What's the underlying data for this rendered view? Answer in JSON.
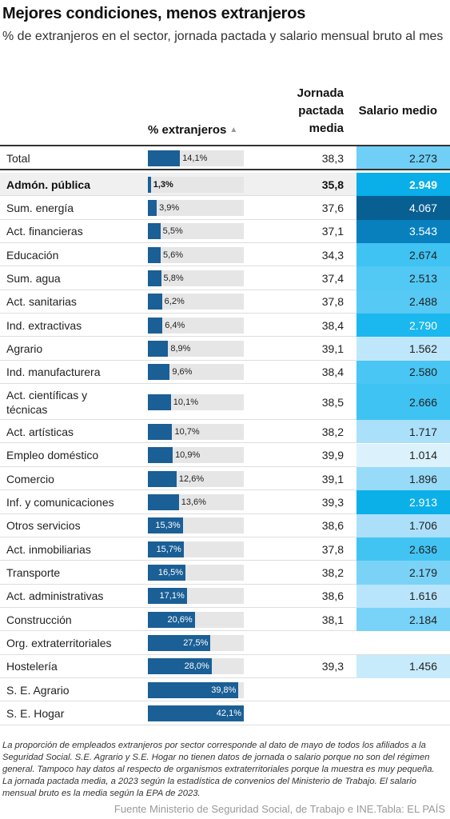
{
  "title": "Mejores condiciones, menos extranjeros",
  "subtitle": "% de extranjeros en el sector, jornada pactada y salario mensual bruto al mes",
  "headers": {
    "pct": "% extranjeros",
    "pct_sort_icon": "▲",
    "jornada": "Jornada pactada media",
    "salario": "Salario medio"
  },
  "chart_data": {
    "type": "table",
    "columns": [
      "",
      "% extranjeros",
      "Jornada pactada media",
      "Salario medio"
    ],
    "rows": [
      {
        "sector": "Total",
        "pct": 14.1,
        "pct_label": "14,1%",
        "jornada": "38,3",
        "salario": "2.273",
        "salario_value": 2273,
        "bg": "#6fcff6"
      },
      {
        "sector": "Admón. pública",
        "pct": 1.3,
        "pct_label": "1,3%",
        "jornada": "35,8",
        "salario": "2.949",
        "salario_value": 2949,
        "bg": "#0aaee8",
        "highlight": true
      },
      {
        "sector": "Sum. energía",
        "pct": 3.9,
        "pct_label": "3,9%",
        "jornada": "37,6",
        "salario": "4.067",
        "salario_value": 4067,
        "bg": "#085f92"
      },
      {
        "sector": "Act. financieras",
        "pct": 5.5,
        "pct_label": "5,5%",
        "jornada": "37,1",
        "salario": "3.543",
        "salario_value": 3543,
        "bg": "#0880be"
      },
      {
        "sector": "Educación",
        "pct": 5.6,
        "pct_label": "5,6%",
        "jornada": "34,3",
        "salario": "2.674",
        "salario_value": 2674,
        "bg": "#3ec3f3"
      },
      {
        "sector": "Sum. agua",
        "pct": 5.8,
        "pct_label": "5,8%",
        "jornada": "37,4",
        "salario": "2.513",
        "salario_value": 2513,
        "bg": "#52c8f5"
      },
      {
        "sector": "Act. sanitarias",
        "pct": 6.2,
        "pct_label": "6,2%",
        "jornada": "37,8",
        "salario": "2.488",
        "salario_value": 2488,
        "bg": "#56c9f5"
      },
      {
        "sector": "Ind. extractivas",
        "pct": 6.4,
        "pct_label": "6,4%",
        "jornada": "38,4",
        "salario": "2.790",
        "salario_value": 2790,
        "bg": "#1ab8ee"
      },
      {
        "sector": "Agrario",
        "pct": 8.9,
        "pct_label": "8,9%",
        "jornada": "39,1",
        "salario": "1.562",
        "salario_value": 1562,
        "bg": "#bfe7fb"
      },
      {
        "sector": "Ind. manufacturera",
        "pct": 9.6,
        "pct_label": "9,6%",
        "jornada": "38,4",
        "salario": "2.580",
        "salario_value": 2580,
        "bg": "#49c6f4"
      },
      {
        "sector": "Act. científicas y técnicas",
        "pct": 10.1,
        "pct_label": "10,1%",
        "jornada": "38,5",
        "salario": "2.666",
        "salario_value": 2666,
        "bg": "#3fc3f3"
      },
      {
        "sector": "Act. artísticas",
        "pct": 10.7,
        "pct_label": "10,7%",
        "jornada": "38,2",
        "salario": "1.717",
        "salario_value": 1717,
        "bg": "#abe0fa"
      },
      {
        "sector": "Empleo doméstico",
        "pct": 10.9,
        "pct_label": "10,9%",
        "jornada": "39,9",
        "salario": "1.014",
        "salario_value": 1014,
        "bg": "#dbf2fd"
      },
      {
        "sector": "Comercio",
        "pct": 12.6,
        "pct_label": "12,6%",
        "jornada": "39,1",
        "salario": "1.896",
        "salario_value": 1896,
        "bg": "#97dbf9"
      },
      {
        "sector": "Inf. y comunicaciones",
        "pct": 13.6,
        "pct_label": "13,6%",
        "jornada": "39,3",
        "salario": "2.913",
        "salario_value": 2913,
        "bg": "#0cb0e9"
      },
      {
        "sector": "Otros servicios",
        "pct": 15.3,
        "pct_label": "15,3%",
        "jornada": "38,6",
        "salario": "1.706",
        "salario_value": 1706,
        "bg": "#ace0fa"
      },
      {
        "sector": "Act. inmobiliarias",
        "pct": 15.7,
        "pct_label": "15,7%",
        "jornada": "37,8",
        "salario": "2.636",
        "salario_value": 2636,
        "bg": "#42c4f3"
      },
      {
        "sector": "Transporte",
        "pct": 16.5,
        "pct_label": "16,5%",
        "jornada": "38,2",
        "salario": "2.179",
        "salario_value": 2179,
        "bg": "#7ad3f7"
      },
      {
        "sector": "Act. administrativas",
        "pct": 17.1,
        "pct_label": "17,1%",
        "jornada": "38,6",
        "salario": "1.616",
        "salario_value": 1616,
        "bg": "#b8e5fb"
      },
      {
        "sector": "Construcción",
        "pct": 20.6,
        "pct_label": "20,6%",
        "jornada": "38,1",
        "salario": "2.184",
        "salario_value": 2184,
        "bg": "#79d2f7"
      },
      {
        "sector": "Org. extraterritoriales",
        "pct": 27.5,
        "pct_label": "27,5%",
        "jornada": "",
        "salario": "",
        "salario_value": null,
        "bg": ""
      },
      {
        "sector": "Hostelería",
        "pct": 28.0,
        "pct_label": "28,0%",
        "jornada": "39,3",
        "salario": "1.456",
        "salario_value": 1456,
        "bg": "#c8ebfc"
      },
      {
        "sector": "S. E. Agrario",
        "pct": 39.8,
        "pct_label": "39,8%",
        "jornada": "",
        "salario": "",
        "salario_value": null,
        "bg": ""
      },
      {
        "sector": "S. E. Hogar",
        "pct": 42.1,
        "pct_label": "42,1%",
        "jornada": "",
        "salario": "",
        "salario_value": null,
        "bg": ""
      }
    ],
    "pct_scale_max": 42.1
  },
  "note": "La proporción de empleados extranjeros por sector corresponde al dato de mayo de todos los afiliados a la Seguridad Social. S.E. Agrario y S.E. Hogar no tienen datos de jornada o salario porque no son del régimen general. Tampoco hay datos al respecto de organismos extraterritoriales porque la muestra es muy pequeña. La jornada pactada media, a 2023 según la estadística de convenios del Ministerio de Trabajo. El salario mensual bruto es la media según la EPA de 2023.",
  "source": "Fuente Ministerio de Seguridad Social, de Trabajo e INE.Tabla: EL PAÍS",
  "colors": {
    "bar": "#1a5f96",
    "track": "#e6e6e6",
    "highlight_row": "#f0f0f0"
  }
}
